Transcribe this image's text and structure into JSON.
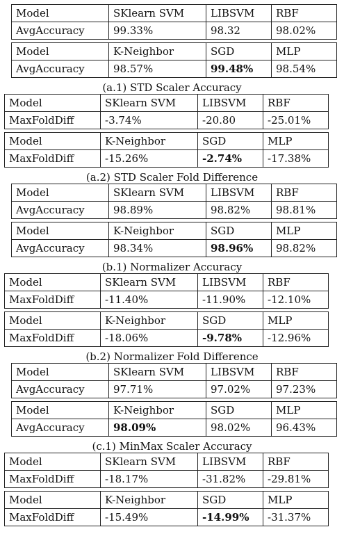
{
  "panels": [
    {
      "caption": "(a.1) STD Scaler Accuracy",
      "tables": [
        [
          [
            "Model",
            "SKlearn SVM",
            "LIBSVM",
            "RBF"
          ],
          [
            "AvgAccuracy",
            "99.33%",
            "98.32",
            "98.02%"
          ]
        ],
        [
          [
            "Model",
            "K-Neighbor",
            "SGD",
            "MLP"
          ],
          [
            "AvgAccuracy",
            "98.57%",
            "99.48%",
            "98.54%"
          ]
        ]
      ],
      "bold": "99.48%"
    },
    {
      "caption": "(a.2) STD Scaler Fold Difference",
      "tables": [
        [
          [
            "Model",
            "SKlearn SVM",
            "LIBSVM",
            "RBF"
          ],
          [
            "MaxFoldDiff",
            "-3.74%",
            "-20.80",
            "-25.01%"
          ]
        ],
        [
          [
            "Model",
            "K-Neighbor",
            "SGD",
            "MLP"
          ],
          [
            "MaxFoldDiff",
            "-15.26%",
            "-2.74%",
            "-17.38%"
          ]
        ]
      ],
      "bold": "-2.74%"
    },
    {
      "caption": "(b.1) Normalizer Accuracy",
      "tables": [
        [
          [
            "Model",
            "SKlearn SVM",
            "LIBSVM",
            "RBF"
          ],
          [
            "AvgAccuracy",
            "98.89%",
            "98.82%",
            "98.81%"
          ]
        ],
        [
          [
            "Model",
            "K-Neighbor",
            "SGD",
            "MLP"
          ],
          [
            "AvgAccuracy",
            "98.34%",
            "98.96%",
            "98.82%"
          ]
        ]
      ],
      "bold": "98.96%"
    },
    {
      "caption": "(b.2) Normalizer Fold Difference",
      "tables": [
        [
          [
            "Model",
            "SKlearn SVM",
            "LIBSVM",
            "RBF"
          ],
          [
            "MaxFoldDiff",
            "-11.40%",
            "-11.90%",
            "-12.10%"
          ]
        ],
        [
          [
            "Model",
            "K-Neighbor",
            "SGD",
            "MLP"
          ],
          [
            "MaxFoldDiff",
            "-18.06%",
            "-9.78%",
            "-12.96%"
          ]
        ]
      ],
      "bold": "-9.78%"
    },
    {
      "caption": "(c.1) MinMax Scaler Accuracy",
      "tables": [
        [
          [
            "Model",
            "SKlearn SVM",
            "LIBSVM",
            "RBF"
          ],
          [
            "AvgAccuracy",
            "97.71%",
            "97.02%",
            "97.23%"
          ]
        ],
        [
          [
            "Model",
            "K-Neighbor",
            "SGD",
            "MLP"
          ],
          [
            "AvgAccuracy",
            "98.09%",
            "98.02%",
            "96.43%"
          ]
        ]
      ],
      "bold": "98.09%"
    },
    {
      "caption": "",
      "tables": [
        [
          [
            "Model",
            "SKlearn SVM",
            "LIBSVM",
            "RBF"
          ],
          [
            "MaxFoldDiff",
            "-18.17%",
            "-31.82%",
            "-29.81%"
          ]
        ],
        [
          [
            "Model",
            "K-Neighbor",
            "SGD",
            "MLP"
          ],
          [
            "MaxFoldDiff",
            "-15.49%",
            "-14.99%",
            "-31.37%"
          ]
        ]
      ],
      "bold": "-14.99%"
    }
  ]
}
